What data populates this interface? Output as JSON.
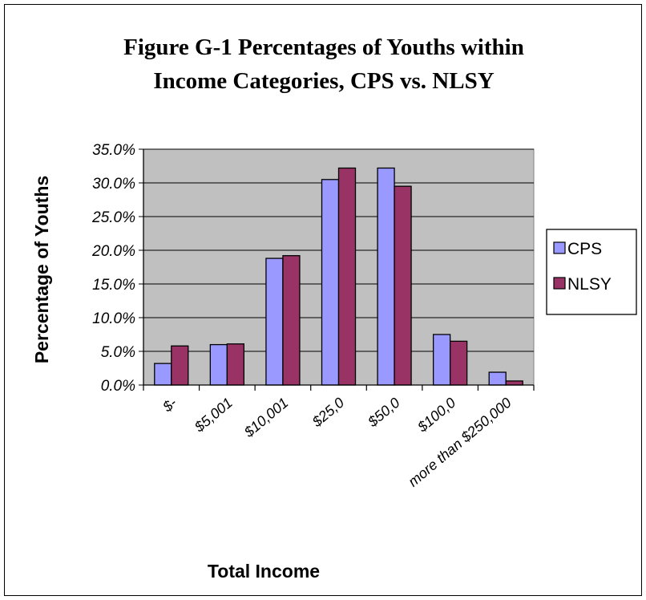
{
  "chart_data": {
    "type": "bar",
    "title_lines": [
      "Figure G-1 Percentages of Youths within",
      "Income Categories, CPS vs. NLSY"
    ],
    "xlabel": "Total Income",
    "ylabel": "Percentage of Youths",
    "categories": [
      "$-",
      "$5,001",
      "$10,001",
      "$25,0",
      "$50,0",
      "$100,0",
      "more than $250,000"
    ],
    "series": [
      {
        "name": "CPS",
        "color": "#9999ff",
        "values": [
          3.2,
          6.0,
          18.8,
          30.5,
          32.2,
          7.5,
          1.9
        ]
      },
      {
        "name": "NLSY",
        "color": "#993366",
        "values": [
          5.8,
          6.1,
          19.2,
          32.2,
          29.5,
          6.5,
          0.6
        ]
      }
    ],
    "ylim": [
      0,
      35
    ],
    "yticks": [
      "0.0%",
      "5.0%",
      "10.0%",
      "15.0%",
      "20.0%",
      "25.0%",
      "30.0%",
      "35.0%"
    ],
    "plot_background": "#c0c0c0",
    "grid": true,
    "legend_position": "right"
  }
}
